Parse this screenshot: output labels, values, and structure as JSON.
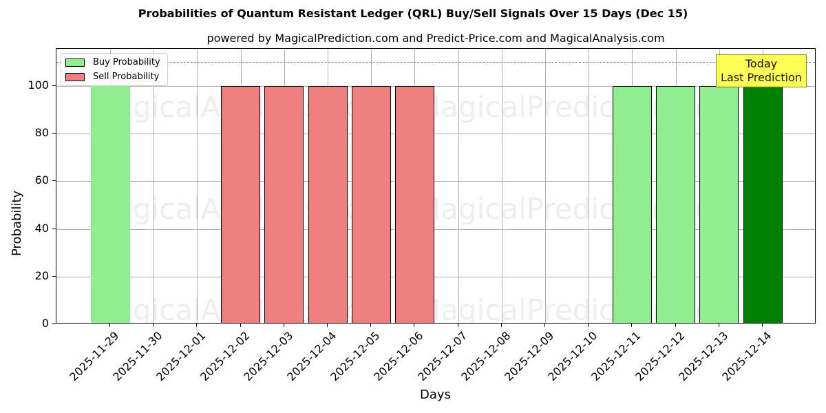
{
  "chart_data": {
    "type": "bar",
    "title": "Probabilities of Quantum Resistant Ledger (QRL) Buy/Sell Signals Over 15 Days (Dec 15)",
    "subtitle": "powered by MagicalPrediction.com and Predict-Price.com and MagicalAnalysis.com",
    "xlabel": "Days",
    "ylabel": "Probability",
    "ylim": [
      0,
      115
    ],
    "yticks": [
      0,
      20,
      40,
      60,
      80,
      100
    ],
    "grid": true,
    "legend_position": "upper left",
    "categories": [
      "2025-11-29",
      "2025-11-30",
      "2025-12-01",
      "2025-12-02",
      "2025-12-03",
      "2025-12-04",
      "2025-12-05",
      "2025-12-06",
      "2025-12-07",
      "2025-12-08",
      "2025-12-09",
      "2025-12-10",
      "2025-12-11",
      "2025-12-12",
      "2025-12-13",
      "2025-12-14"
    ],
    "series": [
      {
        "name": "Buy Probability",
        "color": "#90ee90",
        "values": [
          100,
          0,
          0,
          0,
          0,
          0,
          0,
          0,
          0,
          0,
          0,
          0,
          100,
          100,
          100,
          100
        ]
      },
      {
        "name": "Sell Probability",
        "color": "#f08080",
        "values": [
          0,
          0,
          0,
          100,
          100,
          100,
          100,
          100,
          0,
          0,
          0,
          0,
          0,
          0,
          0,
          0
        ]
      }
    ],
    "highlight": {
      "category": "2025-12-14",
      "color": "#008000"
    },
    "reference_line": {
      "y": 110,
      "style": "dashed",
      "color": "#808080"
    },
    "annotation": {
      "text_line1": "Today",
      "text_line2": "Last Prediction",
      "background": "#ffff44"
    },
    "watermarks": [
      "MagicalAnalysis.com",
      "MagicalPrediction.com"
    ]
  },
  "legend": {
    "buy_label": "Buy Probability",
    "sell_label": "Sell Probability"
  }
}
